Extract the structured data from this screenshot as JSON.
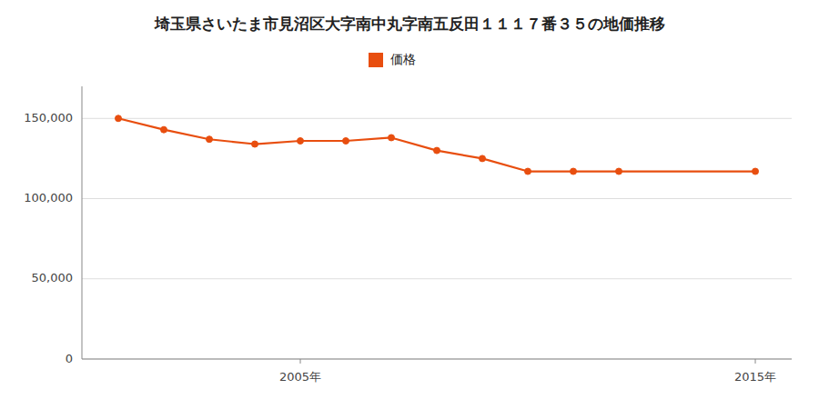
{
  "chart_data": {
    "type": "line",
    "title": "埼玉県さいたま市見沼区大字南中丸字南五反田１１１７番３５の地価推移",
    "x": [
      2001,
      2002,
      2003,
      2004,
      2005,
      2006,
      2007,
      2008,
      2009,
      2010,
      2011,
      2012,
      2015
    ],
    "series": [
      {
        "name": "価格",
        "color": "#e84e0f",
        "marker": "circle",
        "values": [
          150000,
          143000,
          137000,
          134000,
          136000,
          136000,
          138000,
          130000,
          125000,
          117000,
          117000,
          117000,
          117000
        ]
      }
    ],
    "xlim": [
      2000.2,
      2015.8
    ],
    "xticks": [
      {
        "value": 2005,
        "label": "2005年"
      },
      {
        "value": 2015,
        "label": "2015年"
      }
    ],
    "ylim": [
      0,
      170000
    ],
    "yticks": [
      0,
      {
        "value": 50000,
        "label": "50,000"
      },
      {
        "value": 100000,
        "label": "100,000"
      },
      {
        "value": 150000,
        "label": "150,000"
      }
    ],
    "grid": true,
    "legend": "top"
  }
}
